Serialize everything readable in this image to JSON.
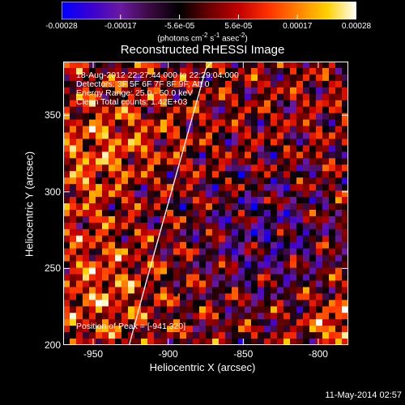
{
  "colorbar": {
    "ticks": [
      "-0.00028",
      "-0.00017",
      "-5.6e-05",
      "5.6e-05",
      "0.00017",
      "0.00028"
    ],
    "unit_text": "(photons cm",
    "unit_parts": [
      "(photons cm",
      "-2",
      " s",
      "-1",
      " asec",
      "-2",
      ")"
    ],
    "range": [
      -0.00028,
      0.00028
    ],
    "colors": [
      "#0000ff",
      "#3a00d0",
      "#6a1aa0",
      "#3a0a40",
      "#000000",
      "#6a0000",
      "#c00000",
      "#ff3000",
      "#ff8000",
      "#ffd000",
      "#ffffff"
    ]
  },
  "chart_data": {
    "type": "heatmap",
    "title": "Reconstructed RHESSI Image",
    "xlabel": "Heliocentric X (arcsec)",
    "ylabel": "Heliocentric Y (arcsec)",
    "xlim": [
      -970,
      -780
    ],
    "ylim": [
      200,
      385
    ],
    "x_ticks": [
      -950,
      -900,
      -850,
      -800
    ],
    "y_ticks": [
      200,
      250,
      300,
      350
    ],
    "annotations": [
      "18-Aug-2012 22:27:44.000 to 22:29:04.000",
      "Detectors: 3F 5F 6F 7F 8F 9F, Att 0",
      "Energy Range: 25.0 - 50.0 keV",
      "Clean    Total counts: 1.42E+03"
    ],
    "peak_label": "Position of Peak = [-941,320]",
    "peak_position": [
      -941,
      320
    ],
    "limb_curve": [
      [
        -926,
        200
      ],
      [
        -915,
        240
      ],
      [
        -905,
        275
      ],
      [
        -895,
        310
      ],
      [
        -885,
        345
      ],
      [
        -875,
        380
      ],
      [
        -871,
        385
      ]
    ],
    "marker_position": [
      -895,
      233
    ]
  },
  "timestamp": "11-May-2014 02:57"
}
